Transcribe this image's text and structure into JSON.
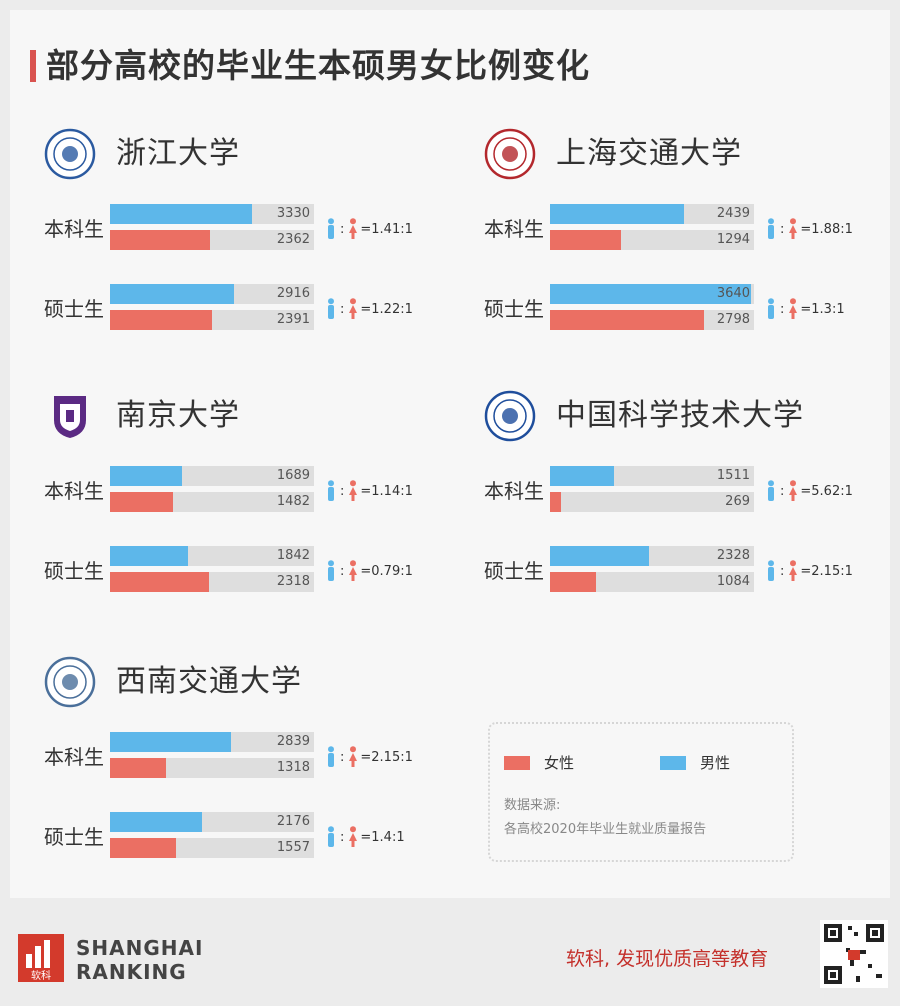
{
  "title": "部分高校的毕业生本硕男女比例变化",
  "colors": {
    "male": "#5db7ea",
    "female": "#eb6f63",
    "track": "#dedede",
    "accent": "#d9534f"
  },
  "legend": {
    "female_label": "女性",
    "male_label": "男性"
  },
  "source": {
    "label": "数据来源:",
    "text": "各高校2020年毕业生就业质量报告"
  },
  "brand": {
    "name_en_line1": "SHANGHAI",
    "name_en_line2": "RANKING",
    "logo_text": "软科",
    "slogan": "软科, 发现优质高等教育"
  },
  "chart_data": [
    {
      "type": "bar",
      "title": "浙江大学",
      "logo": "zju-logo-icon",
      "xlim": [
        0,
        4800
      ],
      "categories": [
        "本科生",
        "硕士生"
      ],
      "series": [
        {
          "name": "男性",
          "values": [
            3330,
            2916
          ]
        },
        {
          "name": "女性",
          "values": [
            2362,
            2391
          ]
        }
      ],
      "ratios": [
        "=1.41:1",
        "=1.22:1"
      ]
    },
    {
      "type": "bar",
      "title": "上海交通大学",
      "logo": "sjtu-logo-icon",
      "xlim": [
        0,
        3700
      ],
      "categories": [
        "本科生",
        "硕士生"
      ],
      "series": [
        {
          "name": "男性",
          "values": [
            2439,
            3640
          ]
        },
        {
          "name": "女性",
          "values": [
            1294,
            2798
          ]
        }
      ],
      "ratios": [
        "=1.88:1",
        "=1.3:1"
      ]
    },
    {
      "type": "bar",
      "title": "南京大学",
      "logo": "nju-logo-icon",
      "xlim": [
        0,
        4800
      ],
      "categories": [
        "本科生",
        "硕士生"
      ],
      "series": [
        {
          "name": "男性",
          "values": [
            1689,
            1842
          ]
        },
        {
          "name": "女性",
          "values": [
            1482,
            2318
          ]
        }
      ],
      "ratios": [
        "=1.14:1",
        "=0.79:1"
      ]
    },
    {
      "type": "bar",
      "title": "中国科学技术大学",
      "logo": "ustc-logo-icon",
      "xlim": [
        0,
        4800
      ],
      "categories": [
        "本科生",
        "硕士生"
      ],
      "series": [
        {
          "name": "男性",
          "values": [
            1511,
            2328
          ]
        },
        {
          "name": "女性",
          "values": [
            269,
            1084
          ]
        }
      ],
      "ratios": [
        "=5.62:1",
        "=2.15:1"
      ]
    },
    {
      "type": "bar",
      "title": "西南交通大学",
      "logo": "swjtu-logo-icon",
      "xlim": [
        0,
        4800
      ],
      "categories": [
        "本科生",
        "硕士生"
      ],
      "series": [
        {
          "name": "男性",
          "values": [
            2839,
            2176
          ]
        },
        {
          "name": "女性",
          "values": [
            1318,
            1557
          ]
        }
      ],
      "ratios": [
        "=2.15:1",
        "=1.4:1"
      ]
    }
  ]
}
